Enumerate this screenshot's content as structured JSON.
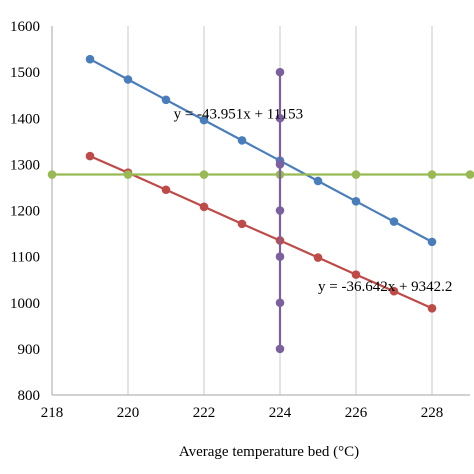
{
  "chart_data": {
    "type": "scatter",
    "xlabel": "Average temperature bed (°C)",
    "ylabel": "",
    "xlim": [
      218,
      229
    ],
    "ylim": [
      800,
      1600
    ],
    "xticks": [
      218,
      220,
      222,
      224,
      226,
      228
    ],
    "yticks": [
      800,
      900,
      1000,
      1100,
      1200,
      1300,
      1400,
      1500,
      1600
    ],
    "grid": "vertical",
    "series": [
      {
        "color": "#4a7ebb",
        "x": [
          219,
          220,
          221,
          222,
          223,
          224,
          225,
          226,
          227,
          228
        ],
        "y": [
          1528,
          1484,
          1440,
          1396,
          1352,
          1308,
          1264,
          1220,
          1176,
          1132
        ]
      },
      {
        "color": "#be4b48",
        "x": [
          219,
          220,
          221,
          222,
          223,
          224,
          225,
          226,
          227,
          228
        ],
        "y": [
          1318,
          1282,
          1245,
          1208,
          1171,
          1135,
          1098,
          1061,
          1025,
          988
        ]
      },
      {
        "color": "#98b954",
        "x": [
          218,
          220,
          222,
          224,
          226,
          228,
          229
        ],
        "y": [
          1278,
          1278,
          1278,
          1278,
          1278,
          1278,
          1278
        ]
      },
      {
        "color": "#7d60a0",
        "x": [
          224,
          224,
          224,
          224,
          224,
          224,
          224
        ],
        "y": [
          900,
          1000,
          1100,
          1200,
          1300,
          1400,
          1500
        ]
      }
    ],
    "annotations": [
      {
        "text": "y = -43.951x + 11153",
        "x": 221.2,
        "y": 1400
      },
      {
        "text": "y = -36.642x + 9342.2",
        "x": 225.0,
        "y": 1025
      }
    ]
  }
}
